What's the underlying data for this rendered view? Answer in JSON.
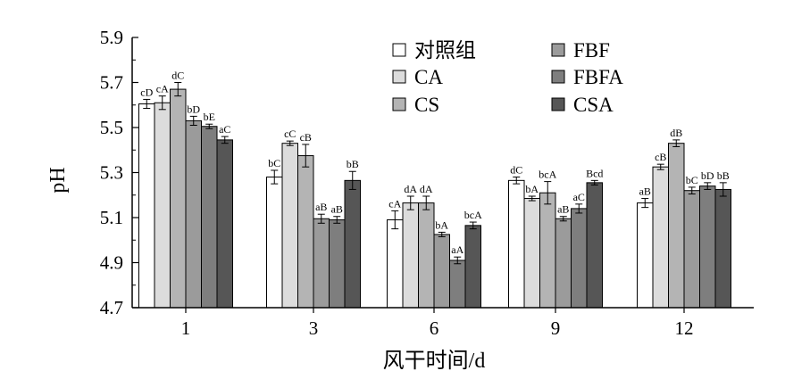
{
  "chart_data": {
    "type": "bar",
    "xlabel": "风干时间/d",
    "ylabel": "pH",
    "ylim": [
      4.7,
      5.9
    ],
    "yticks": [
      "4.7",
      "4.9",
      "5.1",
      "5.3",
      "5.5",
      "5.7",
      "5.9"
    ],
    "categories": [
      "1",
      "3",
      "6",
      "9",
      "12"
    ],
    "legend_position": "top-right",
    "series": [
      {
        "name": "对照组",
        "color": "#ffffff",
        "values": [
          5.605,
          5.28,
          5.09,
          5.265,
          5.165
        ],
        "errors": [
          0.02,
          0.03,
          0.04,
          0.015,
          0.02
        ],
        "labels": [
          "cD",
          "bC",
          "cA",
          "dC",
          "aB"
        ]
      },
      {
        "name": "CA",
        "color": "#dcdcdc",
        "values": [
          5.61,
          5.43,
          5.165,
          5.185,
          5.325
        ],
        "errors": [
          0.03,
          0.01,
          0.03,
          0.01,
          0.012
        ],
        "labels": [
          "cA",
          "cC",
          "dA",
          "bA",
          "cB"
        ]
      },
      {
        "name": "CS",
        "color": "#b4b4b4",
        "values": [
          5.67,
          5.375,
          5.165,
          5.21,
          5.43
        ],
        "errors": [
          0.03,
          0.05,
          0.03,
          0.05,
          0.015
        ],
        "labels": [
          "dC",
          "cB",
          "dA",
          "bcA",
          "dB"
        ]
      },
      {
        "name": "FBF",
        "color": "#9b9b9b",
        "values": [
          5.53,
          5.095,
          5.025,
          5.095,
          5.22
        ],
        "errors": [
          0.02,
          0.02,
          0.01,
          0.01,
          0.015
        ],
        "labels": [
          "bD",
          "aB",
          "bA",
          "aB",
          "bC"
        ]
      },
      {
        "name": "FBFA",
        "color": "#7e7e7e",
        "values": [
          5.505,
          5.09,
          4.91,
          5.14,
          5.24
        ],
        "errors": [
          0.01,
          0.015,
          0.015,
          0.02,
          0.015
        ],
        "labels": [
          "bE",
          "aB",
          "aA",
          "aC",
          "bD"
        ]
      },
      {
        "name": "CSA",
        "color": "#565656",
        "values": [
          5.445,
          5.265,
          5.065,
          5.255,
          5.225
        ],
        "errors": [
          0.015,
          0.04,
          0.015,
          0.01,
          0.03
        ],
        "labels": [
          "aC",
          "bB",
          "bcA",
          "Bcd",
          "bB"
        ]
      }
    ]
  }
}
